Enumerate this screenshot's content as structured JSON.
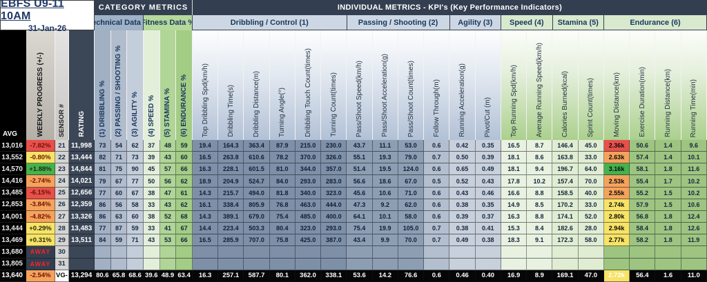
{
  "title_box": {
    "title": "EBFS U9-11 10AM",
    "date": "31-Jan-26"
  },
  "bands": {
    "category": "CATEGORY METRICS",
    "individual": "INDIVIDUAL METRICS - KPI's (Key Performance Indicators)"
  },
  "subheaders": {
    "technical": "Technical Data %",
    "fitness": "Fitness Data %"
  },
  "left_headers": {
    "avg": "AVG",
    "weekly": "WEEKLY PROGRESS (+/-)",
    "sensor": "SENSOR #",
    "rating": "RATING"
  },
  "category_columns": [
    "(1) DRIBBLING %",
    "(2) PASSING / SHOOTING %",
    "(3) AGILITY %",
    "(4) SPEED %",
    "(5) STAMINA %",
    "(6) ENDURANCE %"
  ],
  "groups": [
    {
      "label": "Dribbling / Control (1)",
      "span": 6,
      "theme": "blue"
    },
    {
      "label": "Passing / Shooting (2)",
      "span": 4,
      "theme": "blue"
    },
    {
      "label": "Agility (3)",
      "span": 2,
      "theme": "blue"
    },
    {
      "label": "Speed (4)",
      "span": 2,
      "theme": "green"
    },
    {
      "label": "Stamina (5)",
      "span": 2,
      "theme": "green"
    },
    {
      "label": "Endurance (6)",
      "span": 4,
      "theme": "green"
    }
  ],
  "kpi_columns": [
    {
      "label": "Top Dribbling Spd(km/h)",
      "theme": "drib"
    },
    {
      "label": "Dribbling Time(s)",
      "theme": "drib"
    },
    {
      "label": "Dribbling Distance(m)",
      "theme": "drib"
    },
    {
      "label": "Turning Angle(°)",
      "theme": "drib"
    },
    {
      "label": "Dribbling Touch Count(times)",
      "theme": "drib"
    },
    {
      "label": "Turning Count(times)",
      "theme": "drib"
    },
    {
      "label": "Pass/Shoot Speed(km/h)",
      "theme": "pass"
    },
    {
      "label": "Pass/Shoot Acceleration(g)",
      "theme": "pass"
    },
    {
      "label": "Pass/Shoot Count(times)",
      "theme": "pass"
    },
    {
      "label": "Follow Through(m)",
      "theme": "passl"
    },
    {
      "label": "Running Acceleration(g)",
      "theme": "agil"
    },
    {
      "label": "Pivot/Cut (m)",
      "theme": "agil"
    },
    {
      "label": "Top Running Spd(km/h)",
      "theme": "speed"
    },
    {
      "label": "Average Running Speed(km/h)",
      "theme": "speed"
    },
    {
      "label": "Calories Burned(kcal)",
      "theme": "stam"
    },
    {
      "label": "Sprint Count(times)",
      "theme": "stam"
    },
    {
      "label": "Moving Distance(km)",
      "theme": "dist"
    },
    {
      "label": "Exercise Duration(min)",
      "theme": "endu"
    },
    {
      "label": "Running Distance(km)",
      "theme": "endu"
    },
    {
      "label": "Running Time(min)",
      "theme": "endu"
    }
  ],
  "colors": {
    "red": "#E8504B",
    "orange": "#F5A35C",
    "yellow": "#F7E366",
    "green": "#46B24E",
    "away_text": "#FF2222",
    "header_navy": "#333F50"
  },
  "rows": [
    {
      "avg": "13,016",
      "weekly": "-7.82%",
      "weekly_color": "red",
      "sensor": "21",
      "rating": "11,998",
      "cats": [
        "73",
        "54",
        "62",
        "37",
        "48",
        "59"
      ],
      "kpis": [
        "19.4",
        "164.3",
        "363.4",
        "87.9",
        "215.0",
        "230.0",
        "43.7",
        "11.1",
        "53.0",
        "0.6",
        "0.42",
        "0.35",
        "16.5",
        "8.7",
        "146.4",
        "45.0",
        "2.36k",
        "50.6",
        "1.4",
        "9.6"
      ],
      "dist_color": "red",
      "total": false
    },
    {
      "avg": "13,552",
      "weekly": "-0.80%",
      "weekly_color": "yellow",
      "sensor": "22",
      "rating": "13,444",
      "cats": [
        "82",
        "71",
        "73",
        "39",
        "43",
        "60"
      ],
      "kpis": [
        "16.5",
        "263.8",
        "610.6",
        "78.2",
        "370.0",
        "326.0",
        "55.1",
        "19.3",
        "79.0",
        "0.7",
        "0.50",
        "0.39",
        "18.1",
        "8.6",
        "163.8",
        "33.0",
        "2.63k",
        "57.4",
        "1.4",
        "10.1"
      ],
      "dist_color": "orange",
      "total": false
    },
    {
      "avg": "14,570",
      "weekly": "+1.88%",
      "weekly_color": "green",
      "sensor": "23",
      "rating": "14,844",
      "cats": [
        "81",
        "75",
        "90",
        "45",
        "57",
        "66"
      ],
      "kpis": [
        "16.3",
        "228.1",
        "601.5",
        "81.0",
        "344.0",
        "357.0",
        "51.4",
        "19.5",
        "124.0",
        "0.6",
        "0.65",
        "0.49",
        "18.1",
        "9.4",
        "196.7",
        "64.0",
        "3.16k",
        "58.1",
        "1.8",
        "11.6"
      ],
      "dist_color": "green",
      "total": false
    },
    {
      "avg": "14,416",
      "weekly": "-2.74%",
      "weekly_color": "orange",
      "sensor": "24",
      "rating": "14,021",
      "cats": [
        "79",
        "67",
        "77",
        "50",
        "56",
        "62"
      ],
      "kpis": [
        "18.9",
        "204.9",
        "524.7",
        "84.0",
        "293.0",
        "283.0",
        "56.6",
        "18.6",
        "67.0",
        "0.5",
        "0.52",
        "0.43",
        "17.8",
        "10.2",
        "157.4",
        "70.0",
        "2.53k",
        "55.4",
        "1.7",
        "10.2"
      ],
      "dist_color": "orange",
      "total": false
    },
    {
      "avg": "13,485",
      "weekly": "-6.15%",
      "weekly_color": "red",
      "sensor": "25",
      "rating": "12,656",
      "cats": [
        "77",
        "60",
        "67",
        "38",
        "47",
        "61"
      ],
      "kpis": [
        "14.3",
        "215.7",
        "494.0",
        "81.8",
        "340.0",
        "323.0",
        "45.6",
        "10.6",
        "71.0",
        "0.6",
        "0.43",
        "0.46",
        "16.6",
        "8.8",
        "158.5",
        "40.0",
        "2.55k",
        "55.2",
        "1.5",
        "10.2"
      ],
      "dist_color": "orange",
      "total": false
    },
    {
      "avg": "12,853",
      "weekly": "-3.84%",
      "weekly_color": "orange",
      "sensor": "26",
      "rating": "12,359",
      "cats": [
        "86",
        "56",
        "58",
        "33",
        "43",
        "62"
      ],
      "kpis": [
        "16.1",
        "338.4",
        "805.9",
        "76.8",
        "463.0",
        "444.0",
        "47.3",
        "9.2",
        "62.0",
        "0.6",
        "0.38",
        "0.35",
        "14.9",
        "8.5",
        "170.2",
        "33.0",
        "2.74k",
        "57.9",
        "1.5",
        "10.6"
      ],
      "dist_color": "yellow",
      "total": false
    },
    {
      "avg": "14,001",
      "weekly": "-4.82%",
      "weekly_color": "orange",
      "sensor": "27",
      "rating": "13,326",
      "cats": [
        "86",
        "63",
        "60",
        "38",
        "52",
        "68"
      ],
      "kpis": [
        "14.3",
        "389.1",
        "679.0",
        "75.4",
        "485.0",
        "400.0",
        "64.1",
        "10.1",
        "58.0",
        "0.6",
        "0.39",
        "0.37",
        "16.3",
        "8.8",
        "174.1",
        "52.0",
        "2.80k",
        "56.8",
        "1.8",
        "12.4"
      ],
      "dist_color": "yellow",
      "total": false
    },
    {
      "avg": "13,444",
      "weekly": "+0.29%",
      "weekly_color": "yellow",
      "sensor": "28",
      "rating": "13,483",
      "cats": [
        "77",
        "87",
        "59",
        "33",
        "41",
        "67"
      ],
      "kpis": [
        "14.4",
        "223.4",
        "503.3",
        "80.4",
        "323.0",
        "293.0",
        "75.4",
        "19.9",
        "105.0",
        "0.7",
        "0.38",
        "0.41",
        "15.3",
        "8.4",
        "182.6",
        "28.0",
        "2.94k",
        "58.4",
        "1.8",
        "12.6"
      ],
      "dist_color": "yellow",
      "total": false
    },
    {
      "avg": "13,469",
      "weekly": "+0.31%",
      "weekly_color": "yellow",
      "sensor": "29",
      "rating": "13,511",
      "cats": [
        "84",
        "59",
        "71",
        "43",
        "53",
        "66"
      ],
      "kpis": [
        "16.5",
        "285.9",
        "707.0",
        "75.8",
        "425.0",
        "387.0",
        "43.4",
        "9.9",
        "70.0",
        "0.7",
        "0.49",
        "0.38",
        "18.3",
        "9.1",
        "172.3",
        "58.0",
        "2.77k",
        "58.2",
        "1.8",
        "11.9"
      ],
      "dist_color": "yellow",
      "total": false
    },
    {
      "avg": "13,680",
      "weekly": "AWAY",
      "weekly_color": "away",
      "sensor": "30",
      "rating": "",
      "cats": [
        "",
        "",
        "",
        "",
        "",
        ""
      ],
      "kpis": [
        "",
        "",
        "",
        "",
        "",
        "",
        "",
        "",
        "",
        "",
        "",
        "",
        "",
        "",
        "",
        "",
        "",
        "",
        "",
        ""
      ],
      "dist_color": null,
      "total": false
    },
    {
      "avg": "13,805",
      "weekly": "AWAY",
      "weekly_color": "away",
      "sensor": "31",
      "rating": "",
      "cats": [
        "",
        "",
        "",
        "",
        "",
        ""
      ],
      "kpis": [
        "",
        "",
        "",
        "",
        "",
        "",
        "",
        "",
        "",
        "",
        "",
        "",
        "",
        "",
        "",
        "",
        "",
        "",
        "",
        ""
      ],
      "dist_color": null,
      "total": false
    },
    {
      "avg": "13,640",
      "weekly": "-2.54%",
      "weekly_color": "orange",
      "sensor": "VG-",
      "rating": "13,294",
      "cats": [
        "80.6",
        "65.8",
        "68.6",
        "39.6",
        "48.9",
        "63.4"
      ],
      "kpis": [
        "16.3",
        "257.1",
        "587.7",
        "80.1",
        "362.0",
        "338.1",
        "53.6",
        "14.2",
        "76.6",
        "0.6",
        "0.46",
        "0.40",
        "16.9",
        "8.9",
        "169.1",
        "47.0",
        "2.72k",
        "56.4",
        "1.6",
        "11.0"
      ],
      "dist_color": "yellow",
      "total": true
    }
  ]
}
